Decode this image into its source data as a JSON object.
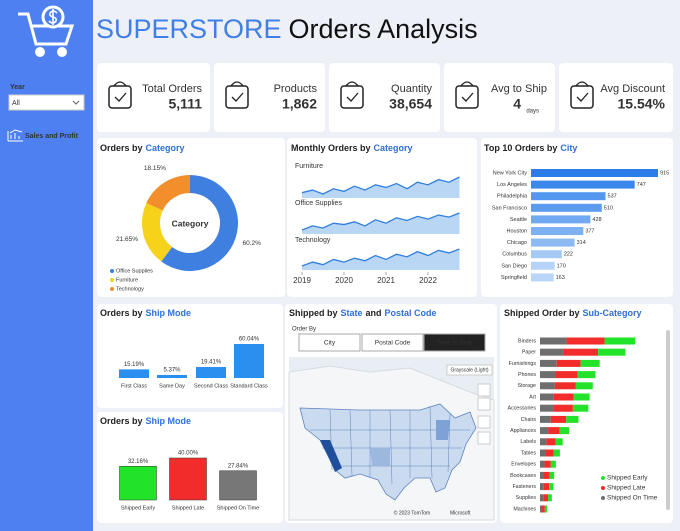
{
  "header": {
    "brand": "SUPERSTORE",
    "title": "Orders Analysis"
  },
  "sidebar": {
    "filter_label": "Year",
    "filter_value": "All",
    "nav": "Sales and Profit"
  },
  "kpis": [
    {
      "label": "Total Orders",
      "value": "5,111"
    },
    {
      "label": "Products",
      "value": "1,862"
    },
    {
      "label": "Quantity",
      "value": "38,654"
    },
    {
      "label": "Avg to Ship",
      "value": "4",
      "unit": "days"
    },
    {
      "label": "Avg Discount",
      "value": "15.54%"
    }
  ],
  "chart_data": [
    {
      "type": "donut",
      "title_parts": [
        "Orders by",
        "Category"
      ],
      "center_label": "Category",
      "categories": [
        "Office Supplies",
        "Furniture",
        "Technology"
      ],
      "values": [
        60.2,
        21.65,
        18.15
      ],
      "value_labels": [
        "60.2%",
        "21.65%",
        "18.15%"
      ],
      "colors": [
        "#3f7fe0",
        "#f6d21a",
        "#f28e2b"
      ]
    },
    {
      "type": "multiline",
      "title_parts": [
        "Monthly Orders by",
        "Category"
      ],
      "x": [
        2019,
        2019.25,
        2019.5,
        2019.75,
        2020,
        2020.25,
        2020.5,
        2020.75,
        2021,
        2021.25,
        2021.5,
        2021.75,
        2022,
        2022.25,
        2022.5,
        2022.75
      ],
      "xlim": [
        2019,
        2023
      ],
      "xticks": [
        2019,
        2020,
        2021,
        2022
      ],
      "color": "#2f7fe0",
      "fill": "#b9d6f5",
      "series": [
        {
          "name": "Furniture",
          "values": [
            28,
            30,
            27,
            31,
            29,
            33,
            30,
            34,
            32,
            35,
            31,
            36,
            34,
            38,
            36,
            40
          ]
        },
        {
          "name": "Office Supplies",
          "values": [
            60,
            66,
            63,
            70,
            68,
            72,
            66,
            75,
            70,
            78,
            74,
            80,
            76,
            82,
            79,
            85
          ]
        },
        {
          "name": "Technology",
          "values": [
            25,
            28,
            26,
            30,
            28,
            31,
            29,
            33,
            30,
            34,
            32,
            36,
            33,
            37,
            35,
            38
          ]
        }
      ]
    },
    {
      "type": "hbar",
      "title_parts": [
        "Top 10 Orders by",
        "City"
      ],
      "categories": [
        "New York City",
        "Los Angeles",
        "Philadelphia",
        "San Francisco",
        "Seattle",
        "Houston",
        "Chicago",
        "Columbus",
        "San Diego",
        "Springfield"
      ],
      "values": [
        915,
        747,
        537,
        510,
        428,
        377,
        314,
        222,
        170,
        163
      ],
      "colors": [
        "#2b7de9",
        "#3b88ec",
        "#5497ee",
        "#5c9cef",
        "#70a9f1",
        "#7db1f2",
        "#8dbaf3",
        "#a6caf6",
        "#b6d3f7",
        "#b9d5f7"
      ]
    },
    {
      "type": "bar",
      "title_parts": [
        "Orders by",
        "Ship Mode"
      ],
      "categories": [
        "First Class",
        "Same Day",
        "Second Class",
        "Standard Class"
      ],
      "values": [
        15.19,
        5.37,
        19.41,
        60.04
      ],
      "value_labels": [
        "15.19%",
        "5.37%",
        "19.41%",
        "60.04%"
      ],
      "colors": [
        "#2b8ff0",
        "#2b8ff0",
        "#2b8ff0",
        "#2b8ff0"
      ]
    },
    {
      "type": "bar",
      "title_parts": [
        "Orders by",
        "Ship Mode"
      ],
      "categories": [
        "Shipped Early",
        "Shipped Late",
        "Shipped On Time"
      ],
      "values": [
        32.16,
        40.0,
        27.84
      ],
      "value_labels": [
        "32.16%",
        "40.00%",
        "27.84%"
      ],
      "colors": [
        "#22e32a",
        "#f22b2b",
        "#777777"
      ]
    },
    {
      "type": "map",
      "title_parts": [
        "Shipped by",
        "State",
        "and",
        "Postal Code"
      ],
      "order_by_label": "Order By",
      "buttons": [
        "City",
        "Postal Code",
        "Time to Ship"
      ],
      "selected": 2,
      "style_label": "Grayscale (Light)",
      "credits": [
        "© 2023 TomTom",
        "Microsoft"
      ]
    },
    {
      "type": "stacked_hbar",
      "title_parts": [
        "Shipped Order by",
        "Sub-Category"
      ],
      "categories": [
        "Binders",
        "Paper",
        "Furnishings",
        "Phones",
        "Storage",
        "Art",
        "Accessories",
        "Chairs",
        "Appliances",
        "Labels",
        "Tables",
        "Envelopes",
        "Bookcases",
        "Fasteners",
        "Supplies",
        "Machines"
      ],
      "series": [
        {
          "name": "Shipped On Time",
          "color": "#6e6e6e",
          "values": [
            426,
            384,
            268,
            249,
            237,
            223,
            217,
            173,
            130,
            102,
            89,
            71,
            64,
            61,
            53,
            32
          ]
        },
        {
          "name": "Shipped Late",
          "color": "#f22b2b",
          "values": [
            609,
            548,
            383,
            356,
            338,
            318,
            310,
            247,
            186,
            146,
            128,
            102,
            91,
            87,
            76,
            46
          ]
        },
        {
          "name": "Shipped Early",
          "color": "#22e32a",
          "values": [
            488,
            438,
            306,
            284,
            271,
            255,
            248,
            197,
            150,
            116,
            102,
            81,
            73,
            69,
            61,
            37
          ]
        }
      ]
    }
  ]
}
